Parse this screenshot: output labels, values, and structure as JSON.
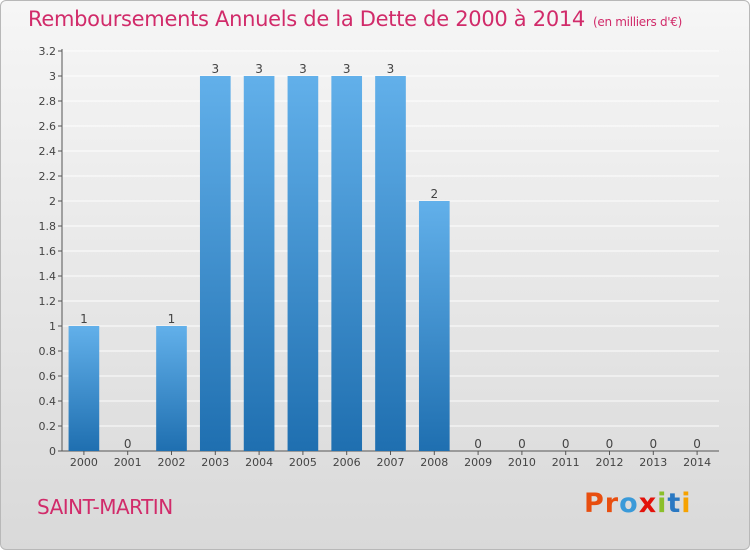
{
  "header": {
    "title": "Remboursements Annuels de la Dette de 2000 à 2014",
    "unit": "(en milliers d'€)"
  },
  "footer": {
    "commune": "SAINT-MARTIN",
    "logo_text": "Proxiti",
    "logo_colors": [
      "#e84e0f",
      "#e84e0f",
      "#3a9ad9",
      "#e3120b",
      "#8bbf2a",
      "#2a78c2",
      "#f6a200"
    ]
  },
  "colors": {
    "bar_top": "#62b0ea",
    "bar_bottom": "#1f6fb0",
    "title": "#d12b6a"
  },
  "chart_data": {
    "type": "bar",
    "categories": [
      "2000",
      "2001",
      "2002",
      "2003",
      "2004",
      "2005",
      "2006",
      "2007",
      "2008",
      "2009",
      "2010",
      "2011",
      "2012",
      "2013",
      "2014"
    ],
    "values": [
      1,
      0,
      1,
      3,
      3,
      3,
      3,
      3,
      2,
      0,
      0,
      0,
      0,
      0,
      0
    ],
    "data_labels": [
      "1",
      "0",
      "1",
      "3",
      "3",
      "3",
      "3",
      "3",
      "2",
      "0",
      "0",
      "0",
      "0",
      "0",
      "0"
    ],
    "yticks": [
      0,
      0.2,
      0.4,
      0.6,
      0.8,
      1,
      1.2,
      1.4,
      1.6,
      1.8,
      2,
      2.2,
      2.4,
      2.6,
      2.8,
      3,
      3.2
    ],
    "ytick_labels": [
      "0",
      "0.2",
      "0.4",
      "0.6",
      "0.8",
      "1",
      "1.2",
      "1.4",
      "1.6",
      "1.8",
      "2",
      "2.2",
      "2.4",
      "2.6",
      "2.8",
      "3",
      "3.2"
    ],
    "ylim": [
      0,
      3.2
    ],
    "title": "Remboursements Annuels de la Dette de 2000 à 2014",
    "xlabel": "",
    "ylabel": "(en milliers d'€)"
  }
}
